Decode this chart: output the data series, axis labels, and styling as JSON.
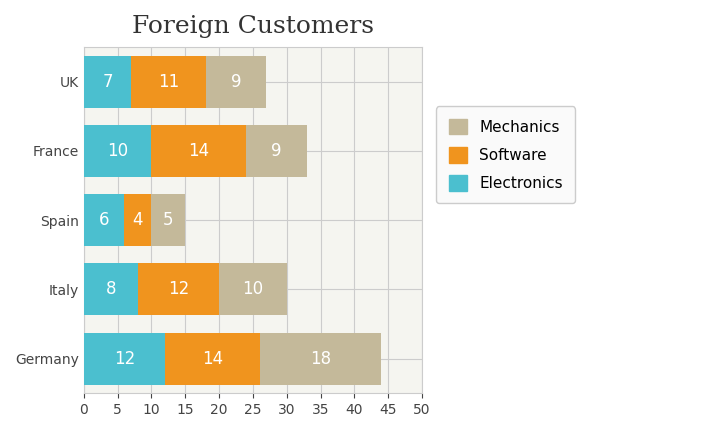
{
  "title": "Foreign Customers",
  "title_fontsize": 18,
  "categories": [
    "Germany",
    "Italy",
    "Spain",
    "France",
    "UK"
  ],
  "electronics": [
    12,
    8,
    6,
    10,
    7
  ],
  "software": [
    14,
    12,
    4,
    14,
    11
  ],
  "mechanics": [
    18,
    10,
    5,
    9,
    9
  ],
  "color_electronics": "#4bbfcf",
  "color_software": "#f0941e",
  "color_mechanics": "#c4b99a",
  "legend_labels": [
    "Mechanics",
    "Software",
    "Electronics"
  ],
  "xlim": [
    0,
    50
  ],
  "xticks": [
    0,
    5,
    10,
    15,
    20,
    25,
    30,
    35,
    40,
    45,
    50
  ],
  "bar_height": 0.75,
  "plot_bg_color": "#f5f5f0",
  "grid_color": "#cccccc",
  "label_fontsize": 12,
  "tick_fontsize": 10,
  "legend_fontsize": 11,
  "text_color_dark": "#555555",
  "figsize": [
    7.25,
    4.32
  ]
}
